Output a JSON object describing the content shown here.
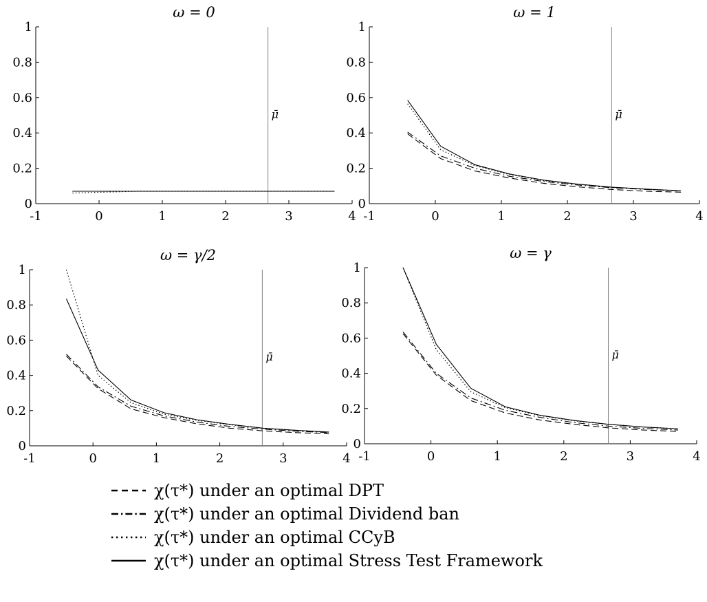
{
  "chart_data": [
    {
      "type": "line",
      "title": "ω = 0",
      "x": [
        -0.42,
        0.08,
        0.6,
        1.12,
        1.64,
        2.16,
        2.68,
        3.2,
        3.72
      ],
      "xlim": [
        -1,
        4
      ],
      "ylim": [
        0,
        1
      ],
      "xticks": [
        "-1",
        "0",
        "1",
        "2",
        "3",
        "4"
      ],
      "yticks": [
        "0",
        "0.2",
        "0.4",
        "0.6",
        "0.8",
        "1"
      ],
      "vline": {
        "x": 2.67,
        "label": "μ̄",
        "label_y": 0.5
      },
      "series": [
        {
          "legend_index": 0,
          "style": "dashed",
          "values": [
            0.07,
            0.07,
            0.07,
            0.07,
            0.07,
            0.07,
            0.07,
            0.07,
            0.07
          ]
        },
        {
          "legend_index": 1,
          "style": "dashdot",
          "values": [
            0.07,
            0.07,
            0.07,
            0.07,
            0.07,
            0.07,
            0.07,
            0.07,
            0.07
          ]
        },
        {
          "legend_index": 2,
          "style": "dotted",
          "values": [
            0.06,
            0.065,
            0.07,
            0.07,
            0.07,
            0.07,
            0.07,
            0.07,
            0.07
          ]
        },
        {
          "legend_index": 3,
          "style": "solid",
          "values": [
            0.07,
            0.07,
            0.07,
            0.07,
            0.07,
            0.07,
            0.07,
            0.07,
            0.07
          ]
        }
      ]
    },
    {
      "type": "line",
      "title": "ω = 1",
      "x": [
        -0.42,
        0.08,
        0.6,
        1.12,
        1.64,
        2.16,
        2.68,
        3.2,
        3.72
      ],
      "xlim": [
        -1,
        4
      ],
      "ylim": [
        0,
        1
      ],
      "xticks": [
        "-1",
        "0",
        "1",
        "2",
        "3",
        "4"
      ],
      "yticks": [
        "0",
        "0.2",
        "0.4",
        "0.6",
        "0.8",
        "1"
      ],
      "vline": {
        "x": 2.67,
        "label": "μ̄",
        "label_y": 0.5
      },
      "series": [
        {
          "legend_index": 0,
          "style": "dashed",
          "values": [
            0.395,
            0.255,
            0.185,
            0.145,
            0.115,
            0.095,
            0.08,
            0.07,
            0.065
          ]
        },
        {
          "legend_index": 1,
          "style": "dashdot",
          "values": [
            0.405,
            0.27,
            0.2,
            0.155,
            0.125,
            0.105,
            0.09,
            0.08,
            0.072
          ]
        },
        {
          "legend_index": 2,
          "style": "dotted",
          "values": [
            0.565,
            0.305,
            0.215,
            0.165,
            0.13,
            0.11,
            0.092,
            0.082,
            0.073
          ]
        },
        {
          "legend_index": 3,
          "style": "solid",
          "values": [
            0.585,
            0.325,
            0.22,
            0.168,
            0.133,
            0.11,
            0.093,
            0.082,
            0.073
          ]
        }
      ]
    },
    {
      "type": "line",
      "title": "ω = γ/2",
      "x": [
        -0.42,
        0.08,
        0.6,
        1.12,
        1.64,
        2.16,
        2.68,
        3.2,
        3.72
      ],
      "xlim": [
        -1,
        4
      ],
      "ylim": [
        0,
        1
      ],
      "xticks": [
        "-1",
        "0",
        "1",
        "2",
        "3",
        "4"
      ],
      "yticks": [
        "0",
        "0.2",
        "0.4",
        "0.6",
        "0.8",
        "1"
      ],
      "vline": {
        "x": 2.67,
        "label": "μ̄",
        "label_y": 0.5
      },
      "series": [
        {
          "legend_index": 0,
          "style": "dashed",
          "values": [
            0.51,
            0.325,
            0.21,
            0.16,
            0.125,
            0.1,
            0.085,
            0.075,
            0.068
          ]
        },
        {
          "legend_index": 1,
          "style": "dashdot",
          "values": [
            0.52,
            0.335,
            0.225,
            0.17,
            0.135,
            0.11,
            0.095,
            0.083,
            0.075
          ]
        },
        {
          "legend_index": 2,
          "style": "dotted",
          "values": [
            1.0,
            0.4,
            0.245,
            0.18,
            0.145,
            0.12,
            0.1,
            0.088,
            0.078
          ]
        },
        {
          "legend_index": 3,
          "style": "solid",
          "values": [
            0.835,
            0.43,
            0.26,
            0.188,
            0.148,
            0.122,
            0.1,
            0.088,
            0.078
          ]
        }
      ]
    },
    {
      "type": "line",
      "title": "ω = γ",
      "x": [
        -0.42,
        0.08,
        0.6,
        1.12,
        1.64,
        2.16,
        2.68,
        3.2,
        3.72
      ],
      "xlim": [
        -1,
        4
      ],
      "ylim": [
        0,
        1
      ],
      "xticks": [
        "-1",
        "0",
        "1",
        "2",
        "3",
        "4"
      ],
      "yticks": [
        "0",
        "0.2",
        "0.4",
        "0.6",
        "0.8",
        "1"
      ],
      "vline": {
        "x": 2.67,
        "label": "μ̄",
        "label_y": 0.5
      },
      "series": [
        {
          "legend_index": 0,
          "style": "dashed",
          "values": [
            0.625,
            0.39,
            0.245,
            0.175,
            0.135,
            0.11,
            0.09,
            0.078,
            0.07
          ]
        },
        {
          "legend_index": 1,
          "style": "dashdot",
          "values": [
            0.635,
            0.4,
            0.26,
            0.19,
            0.15,
            0.12,
            0.1,
            0.087,
            0.078
          ]
        },
        {
          "legend_index": 2,
          "style": "dotted",
          "values": [
            1.0,
            0.535,
            0.295,
            0.205,
            0.16,
            0.13,
            0.11,
            0.095,
            0.085
          ]
        },
        {
          "legend_index": 3,
          "style": "solid",
          "values": [
            1.0,
            0.565,
            0.315,
            0.21,
            0.162,
            0.132,
            0.11,
            0.095,
            0.085
          ]
        }
      ]
    }
  ],
  "legend": {
    "items": [
      {
        "style": "dashed",
        "label": "χ(τ*) under an optimal DPT"
      },
      {
        "style": "dashdot",
        "label": "χ(τ*) under an optimal Dividend ban"
      },
      {
        "style": "dotted",
        "label": "χ(τ*) under an optimal CCyB"
      },
      {
        "style": "solid",
        "label": "χ(τ*) under an optimal Stress Test Framework"
      }
    ]
  }
}
